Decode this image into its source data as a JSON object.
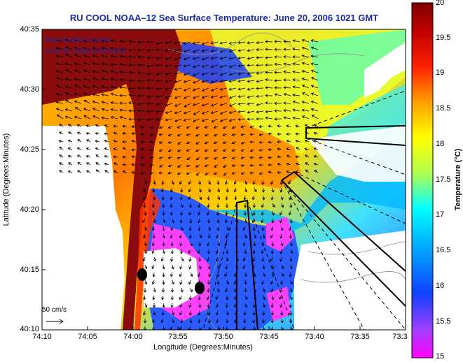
{
  "title": "RU COOL  NOAA–12  Sea Surface Temperature:  June 20, 2006 1021 GMT",
  "annotations": {
    "raw_surface_current": "Raw Surface Current",
    "current_date": "June 20, 2006 10:00 GMT",
    "scale_arrow": "50 cm/s"
  },
  "axes": {
    "xlabel": "Longitude (Degrees:Minutes)",
    "ylabel": "Latitude (Degrees:Minutes)",
    "x_ticks": [
      "74:10",
      "74:05",
      "74:00",
      "73:55",
      "73:50",
      "73:45",
      "73:40",
      "73:35",
      "73:3"
    ],
    "y_ticks": [
      "40:35",
      "40:30",
      "40:25",
      "40:20",
      "40:15",
      "40:10"
    ]
  },
  "colorbar": {
    "label": "Temperature (°C)",
    "ticks": [
      "20",
      "19.5",
      "19",
      "18.5",
      "18",
      "17.5",
      "17",
      "16.5",
      "16",
      "15.5",
      "15"
    ],
    "range": [
      15,
      20
    ],
    "colors": [
      "#ff00ff",
      "#8040ff",
      "#1040ff",
      "#00a0ff",
      "#00ffff",
      "#a0ff60",
      "#ffff00",
      "#ffa000",
      "#ff3000",
      "#c00000",
      "#800000"
    ]
  },
  "map_colors": {
    "land": "#ffffff",
    "coast_warm": "#8b0c0c",
    "nearshore_cool": "#3050ff",
    "offshore_warm": "#ff8a00",
    "cold_patch": "#ff40ff",
    "grid": "#000000"
  }
}
